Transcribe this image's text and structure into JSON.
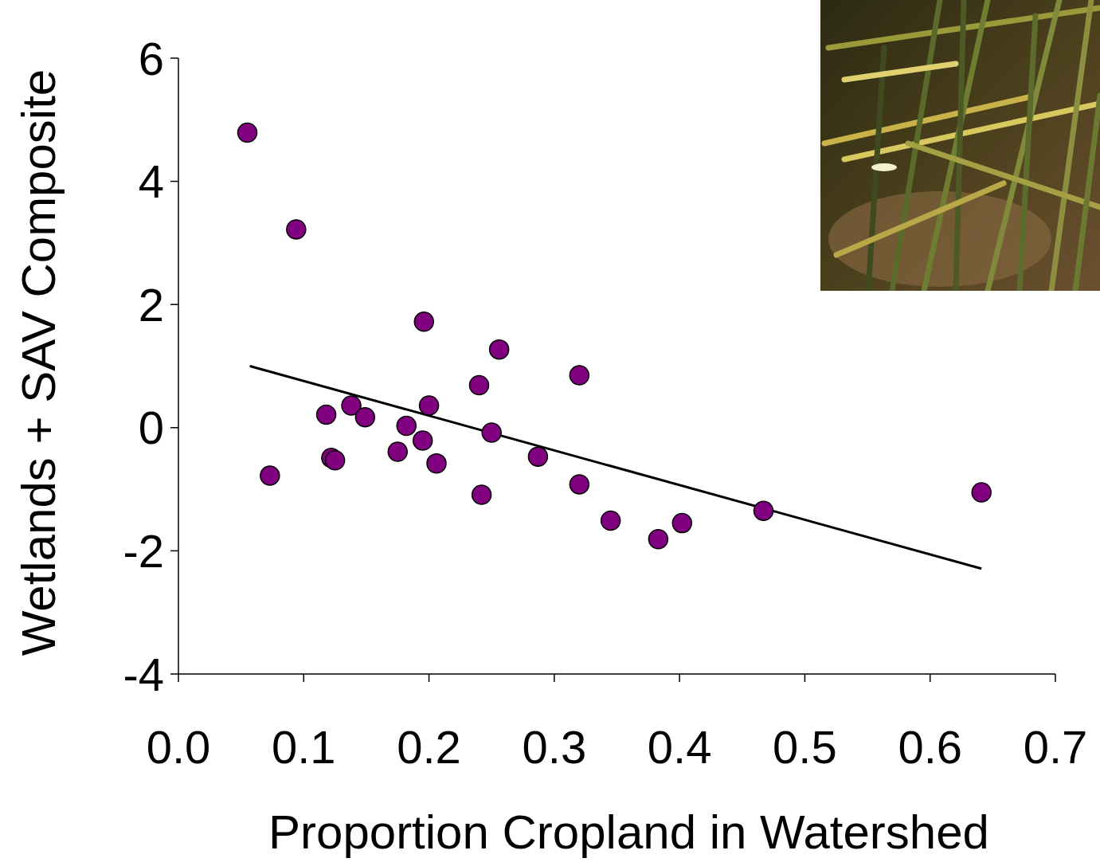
{
  "chart_data": {
    "type": "scatter",
    "x_label": "Proportion Cropland in Watershed",
    "y_label": "Wetlands + SAV Composite",
    "xlim": [
      0,
      0.7
    ],
    "xticks": [
      {
        "value": 0,
        "label": "0.0"
      },
      0.1,
      0.2,
      0.3,
      0.4,
      0.5,
      0.6,
      0.7
    ],
    "ylim": [
      -4,
      6
    ],
    "yticks": [
      -4,
      -2,
      0,
      2,
      4,
      6
    ],
    "grid": false,
    "series": [
      {
        "type": "scatter",
        "marker": "circle",
        "color": "#800080",
        "x": [
          0.055,
          0.094,
          0.073,
          0.118,
          0.122,
          0.125,
          0.138,
          0.149,
          0.175,
          0.182,
          0.195,
          0.196,
          0.2,
          0.206,
          0.24,
          0.242,
          0.25,
          0.256,
          0.287,
          0.32,
          0.32,
          0.345,
          0.383,
          0.402,
          0.467,
          0.641
        ],
        "values": [
          4.79,
          3.22,
          -0.78,
          0.21,
          -0.49,
          -0.53,
          0.36,
          0.17,
          -0.39,
          0.03,
          -0.21,
          1.72,
          0.36,
          -0.58,
          0.69,
          -1.09,
          -0.08,
          1.27,
          -0.47,
          0.85,
          -0.92,
          -1.51,
          -1.81,
          -1.55,
          -1.35,
          -1.05
        ]
      },
      {
        "type": "line",
        "line_style": "solid",
        "color": "#000000",
        "x": [
          0.057,
          0.641
        ],
        "values": [
          1.0,
          -2.29
        ]
      }
    ]
  }
}
